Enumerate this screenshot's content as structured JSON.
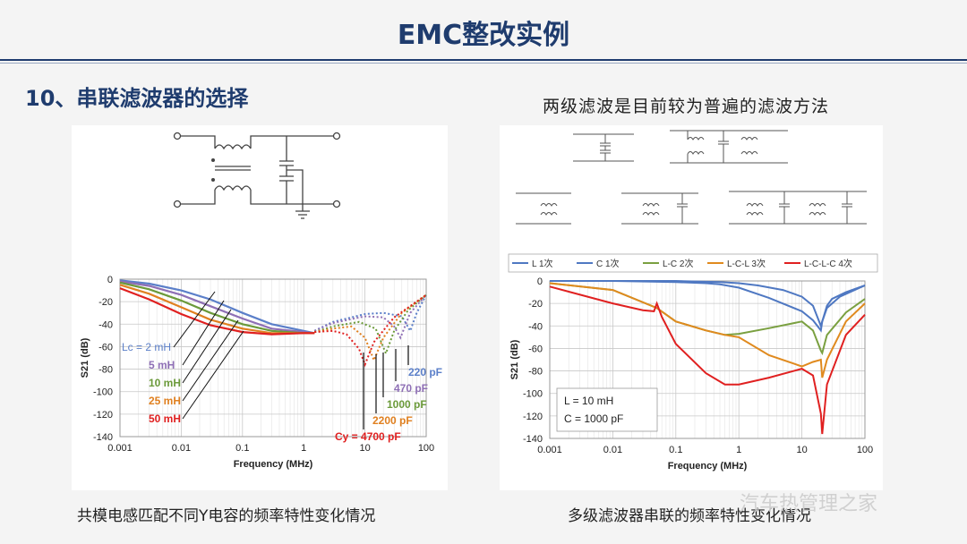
{
  "header": {
    "title": "EMC整改实例"
  },
  "section": {
    "title": "10、串联滤波器的选择"
  },
  "right_heading": "两级滤波是目前较为普遍的滤波方法",
  "left_caption": "共模电感匹配不同Y电容的频率特性变化情况",
  "right_caption": "多级滤波器串联的频率特性变化情况",
  "watermark": "汽车热管理之家",
  "chart_data": [
    {
      "type": "line",
      "xlabel": "Frequency (MHz)",
      "ylabel": "S21 (dB)",
      "x_scale": "log",
      "xlim": [
        0.001,
        100
      ],
      "ylim": [
        -140,
        0
      ],
      "x_ticks": [
        "0.001",
        "0.01",
        "0.1",
        "1",
        "10",
        "100"
      ],
      "y_ticks": [
        "0",
        "-20",
        "-40",
        "-60",
        "-80",
        "-100",
        "-120",
        "-140"
      ],
      "grid": true,
      "inductor_labels": [
        "Lc = 2 mH",
        "5 mH",
        "10 mH",
        "25 mH",
        "50 mH"
      ],
      "capacitor_labels": [
        "220 pF",
        "470 pF",
        "1000 pF",
        "2200 pF",
        "Cy = 4700 pF"
      ],
      "series": [
        {
          "style": "solid",
          "color": "#5b7fc9",
          "x": [
            0.001,
            0.003,
            0.01,
            0.03,
            0.1,
            0.3,
            1,
            1.5
          ],
          "y": [
            -1,
            -4,
            -10,
            -18,
            -30,
            -40,
            -46,
            -48
          ]
        },
        {
          "style": "solid",
          "color": "#8e6fb5",
          "x": [
            0.001,
            0.003,
            0.01,
            0.03,
            0.1,
            0.3,
            1,
            1.5
          ],
          "y": [
            -2,
            -6,
            -14,
            -24,
            -35,
            -44,
            -47,
            -48
          ]
        },
        {
          "style": "solid",
          "color": "#6b9a3a",
          "x": [
            0.001,
            0.003,
            0.01,
            0.03,
            0.1,
            0.3,
            1,
            1.5
          ],
          "y": [
            -3,
            -9,
            -19,
            -30,
            -40,
            -46,
            -48,
            -48
          ]
        },
        {
          "style": "solid",
          "color": "#e08020",
          "x": [
            0.001,
            0.003,
            0.01,
            0.03,
            0.1,
            0.3,
            1,
            1.5
          ],
          "y": [
            -5,
            -13,
            -25,
            -36,
            -44,
            -48,
            -48,
            -48
          ]
        },
        {
          "style": "solid",
          "color": "#e02020",
          "x": [
            0.001,
            0.003,
            0.01,
            0.03,
            0.1,
            0.3,
            1,
            1.5
          ],
          "y": [
            -8,
            -18,
            -31,
            -41,
            -47,
            -49,
            -48,
            -48
          ]
        },
        {
          "style": "dotted",
          "color": "#5b7fc9",
          "x": [
            1.5,
            3,
            10,
            20,
            40,
            55,
            70,
            100
          ],
          "y": [
            -46,
            -38,
            -31,
            -30,
            -33,
            -46,
            -30,
            -14
          ]
        },
        {
          "style": "dotted",
          "color": "#8e6fb5",
          "x": [
            1.5,
            3,
            10,
            20,
            30,
            38,
            55,
            100
          ],
          "y": [
            -46,
            -39,
            -33,
            -34,
            -42,
            -52,
            -30,
            -14
          ]
        },
        {
          "style": "dotted",
          "color": "#6b9a3a",
          "x": [
            1.5,
            3,
            8,
            15,
            22,
            30,
            50,
            100
          ],
          "y": [
            -47,
            -42,
            -38,
            -44,
            -66,
            -46,
            -28,
            -14
          ]
        },
        {
          "style": "dotted",
          "color": "#e08020",
          "x": [
            1.5,
            3,
            6,
            10,
            14,
            20,
            40,
            100
          ],
          "y": [
            -47,
            -44,
            -42,
            -52,
            -72,
            -52,
            -30,
            -14
          ]
        },
        {
          "style": "dotted",
          "color": "#e02020",
          "x": [
            1.5,
            3,
            5,
            8,
            10,
            14,
            30,
            100
          ],
          "y": [
            -47,
            -46,
            -49,
            -62,
            -76,
            -56,
            -34,
            -14
          ]
        }
      ]
    },
    {
      "type": "line",
      "xlabel": "Frequency (MHz)",
      "ylabel": "S21 (dB)",
      "x_scale": "log",
      "xlim": [
        0.001,
        100
      ],
      "ylim": [
        -140,
        0
      ],
      "x_ticks": [
        "0.001",
        "0.01",
        "0.1",
        "1",
        "10",
        "100"
      ],
      "y_ticks": [
        "0",
        "-20",
        "-40",
        "-60",
        "-80",
        "-100",
        "-120",
        "-140"
      ],
      "grid": true,
      "legend": "top",
      "annotation": [
        "L = 10 mH",
        "C = 1000 pF"
      ],
      "series": [
        {
          "name": "L 1次",
          "color": "#4f78c2",
          "x": [
            0.001,
            0.01,
            0.1,
            0.5,
            1,
            2,
            5,
            10,
            15,
            20,
            25,
            30,
            50,
            100
          ],
          "y": [
            0,
            0,
            0,
            -1,
            -2,
            -4,
            -8,
            -14,
            -22,
            -40,
            -22,
            -16,
            -10,
            -4
          ]
        },
        {
          "name": "C 1次",
          "color": "#4f78c2",
          "x": [
            0.001,
            0.01,
            0.1,
            0.3,
            0.5,
            1,
            3,
            10,
            15,
            20,
            21,
            25,
            40,
            100
          ],
          "y": [
            0,
            0,
            -1,
            -2,
            -3,
            -6,
            -15,
            -27,
            -35,
            -44,
            -36,
            -24,
            -14,
            -4
          ]
        },
        {
          "name": "L-C 2次",
          "color": "#7aa040",
          "x": [
            0.001,
            0.01,
            0.05,
            0.1,
            0.3,
            0.6,
            1,
            3,
            10,
            15,
            20,
            21,
            25,
            50,
            100
          ],
          "y": [
            -2,
            -8,
            -24,
            -36,
            -44,
            -48,
            -47,
            -42,
            -36,
            -44,
            -62,
            -64,
            -48,
            -28,
            -16
          ]
        },
        {
          "name": "L-C-L 3次",
          "color": "#e08a1e",
          "x": [
            0.001,
            0.01,
            0.05,
            0.1,
            0.3,
            0.6,
            1,
            3,
            10,
            15,
            20,
            21,
            25,
            50,
            100
          ],
          "y": [
            -2,
            -8,
            -24,
            -36,
            -44,
            -48,
            -50,
            -66,
            -76,
            -72,
            -70,
            -86,
            -70,
            -36,
            -20
          ]
        },
        {
          "name": "L-C-L-C 4次",
          "color": "#e02020",
          "x": [
            0.001,
            0.01,
            0.03,
            0.045,
            0.05,
            0.06,
            0.1,
            0.3,
            0.6,
            1,
            3,
            10,
            15,
            20,
            21,
            25,
            50,
            100
          ],
          "y": [
            -5,
            -20,
            -26,
            -27,
            -20,
            -32,
            -56,
            -82,
            -92,
            -92,
            -86,
            -78,
            -84,
            -118,
            -136,
            -92,
            -48,
            -30
          ]
        }
      ]
    }
  ]
}
